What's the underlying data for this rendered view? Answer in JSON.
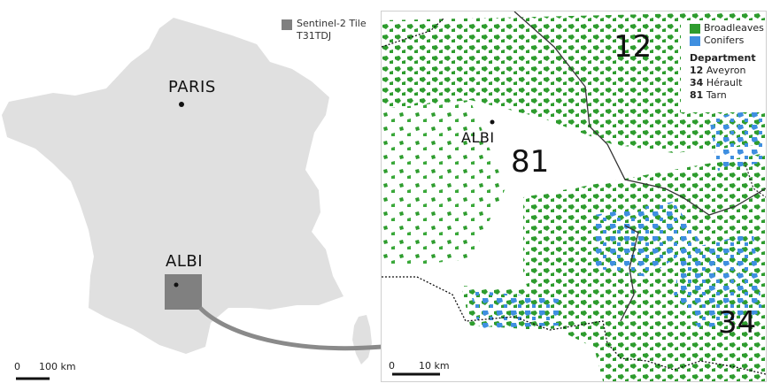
{
  "left_map": {
    "tile_legend_line1": "Sentinel-2 Tile",
    "tile_legend_line2": "T31TDJ",
    "city_paris": "PARIS",
    "city_albi": "ALBI",
    "scale_zero": "0",
    "scale_value": "100 km",
    "colors": {
      "land": "#e0e0e0",
      "tile": "#808080",
      "arrow": "#8a8a8a"
    }
  },
  "right_map": {
    "city_albi": "ALBI",
    "departments_on_map": [
      "12",
      "81",
      "34"
    ],
    "legend": {
      "classes": [
        {
          "label": "Broadleaves",
          "color": "#2e9c2e"
        },
        {
          "label": "Conifers",
          "color": "#3f8fe0"
        }
      ],
      "department_heading": "Department",
      "departments": [
        {
          "code": "12",
          "name": "Aveyron"
        },
        {
          "code": "34",
          "name": "Hérault"
        },
        {
          "code": "81",
          "name": "Tarn"
        }
      ]
    },
    "scale_zero": "0",
    "scale_value": "10 km"
  }
}
